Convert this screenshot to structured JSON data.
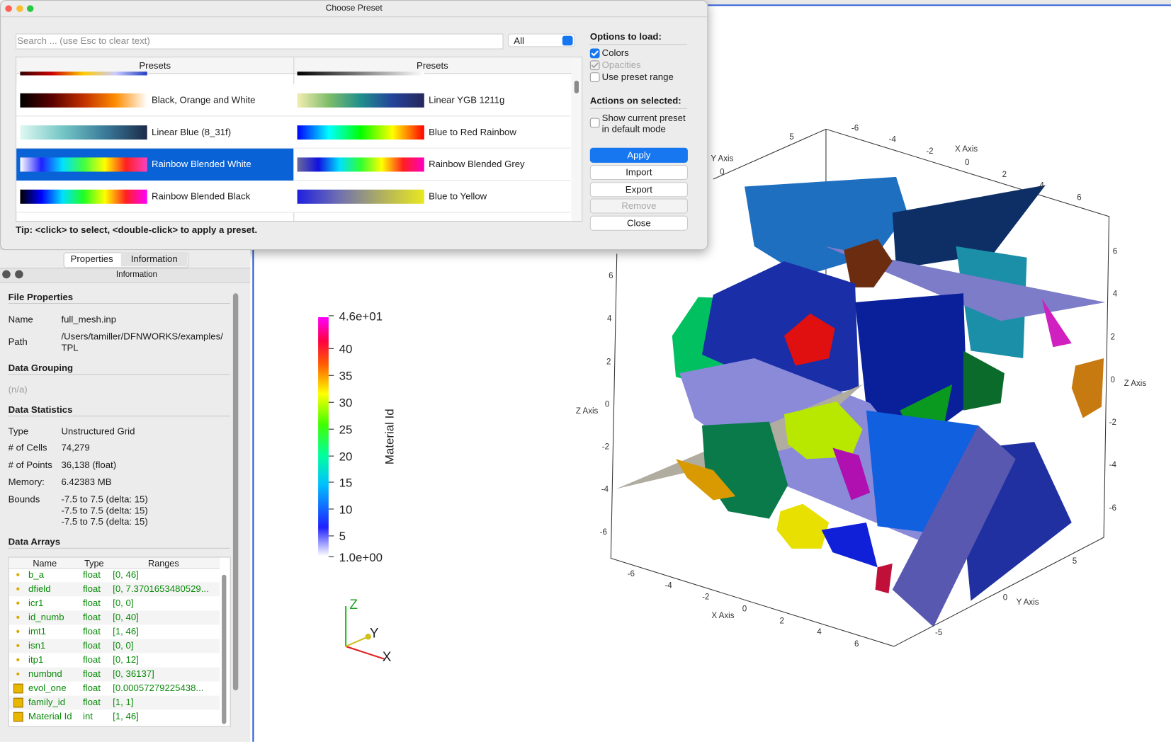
{
  "dialog": {
    "title": "Choose Preset",
    "search_placeholder": "Search ... (use Esc to clear text)",
    "filter": "All",
    "columns": [
      "Presets",
      "Presets"
    ],
    "presets": [
      [
        "Black, Orange and White",
        "Linear YGB 1211g"
      ],
      [
        "Linear Blue (8_31f)",
        "Blue to Red Rainbow"
      ],
      [
        "Rainbow Blended White",
        "Rainbow Blended Grey"
      ],
      [
        "Rainbow Blended Black",
        "Blue to Yellow"
      ]
    ],
    "tip": "Tip: <click> to select, <double-click> to apply a preset.",
    "options_title": "Options to load:",
    "options": [
      "Colors",
      "Opacities",
      "Use preset range"
    ],
    "actions_title": "Actions on selected:",
    "show_current": "Show current preset in default mode",
    "buttons": [
      "Apply",
      "Import",
      "Export",
      "Remove",
      "Close"
    ]
  },
  "panel": {
    "tabs": [
      "Properties",
      "Information"
    ],
    "header": "Information",
    "file_properties": {
      "title": "File Properties",
      "rows": [
        [
          "Name",
          "full_mesh.inp"
        ],
        [
          "Path",
          "/Users/tamiller/DFNWORKS/examples/TPL"
        ]
      ]
    },
    "data_grouping": {
      "title": "Data Grouping",
      "value": "(n/a)"
    },
    "data_statistics": {
      "title": "Data Statistics",
      "rows": [
        [
          "Type",
          "Unstructured Grid"
        ],
        [
          "# of Cells",
          "74,279"
        ],
        [
          "# of Points",
          "36,138 (float)"
        ],
        [
          "Memory:",
          "6.42383 MB"
        ]
      ],
      "bounds_label": "Bounds",
      "bounds": [
        "-7.5 to 7.5 (delta: 15)",
        "-7.5 to 7.5 (delta: 15)",
        "-7.5 to 7.5 (delta: 15)"
      ]
    },
    "data_arrays": {
      "title": "Data Arrays",
      "columns": [
        "Name",
        "Type",
        "Ranges"
      ],
      "rows": [
        [
          "b_a",
          "float",
          "[0, 46]"
        ],
        [
          "dfield",
          "float",
          "[0, 7.3701653480529..."
        ],
        [
          "icr1",
          "float",
          "[0, 0]"
        ],
        [
          "id_numb",
          "float",
          "[0, 40]"
        ],
        [
          "imt1",
          "float",
          "[1, 46]"
        ],
        [
          "isn1",
          "float",
          "[0, 0]"
        ],
        [
          "itp1",
          "float",
          "[0, 12]"
        ],
        [
          "numbnd",
          "float",
          "[0, 36137]"
        ],
        [
          "evol_one",
          "float",
          "[0.00057279225438..."
        ],
        [
          "family_id",
          "float",
          "[1, 1]"
        ],
        [
          "Material Id",
          "int",
          "[1, 46]"
        ]
      ]
    }
  },
  "viewport": {
    "colorbar": {
      "title": "Material Id",
      "labels": [
        "4.6e+01",
        "40",
        "35",
        "30",
        "25",
        "20",
        "15",
        "10",
        "5",
        "1.0e+00"
      ]
    },
    "orientation": [
      "Z",
      "Y",
      "X"
    ],
    "axis_labels": [
      "5",
      "Y Axis",
      "0",
      "-6",
      "-4",
      "-2",
      "X Axis",
      "0",
      "2",
      "4",
      "6",
      "6",
      "4",
      "2",
      "0",
      "Z Axis",
      "-2",
      "-4",
      "-6",
      "6",
      "4",
      "2",
      "Z Axis",
      "0",
      "-2",
      "-4",
      "-6",
      "-6",
      "-4",
      "-2",
      "X Axis",
      "0",
      "2",
      "4",
      "6",
      "5",
      "0",
      "Y Axis",
      "-5"
    ]
  }
}
